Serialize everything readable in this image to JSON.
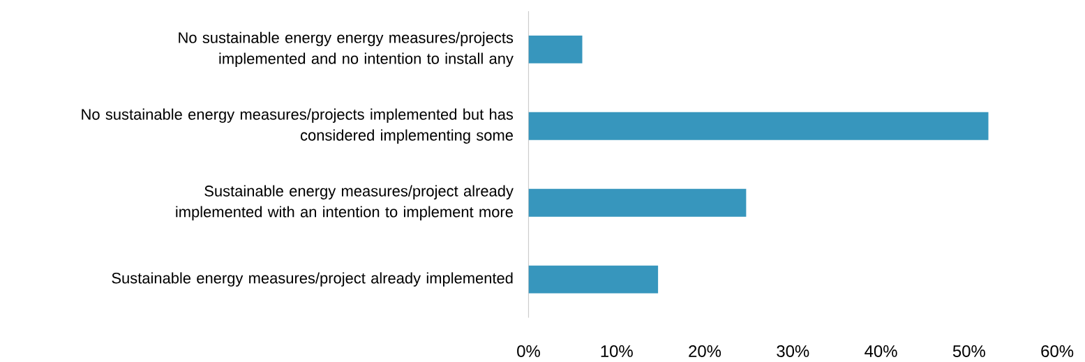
{
  "chart_data": {
    "type": "bar",
    "orientation": "horizontal",
    "categories": [
      "No sustainable energy energy measures/projects implemented and no intention to install any",
      "No sustainable energy measures/projects implemented but has considered implementing some",
      "Sustainable energy measures/project already implemented with an intention to implement more",
      "Sustainable energy measures/project already implemented"
    ],
    "values": [
      6.1,
      52.2,
      24.7,
      14.7
    ],
    "color": "#3796bd",
    "xlim": [
      0,
      60
    ],
    "xticks": [
      {
        "value": 0,
        "label": "0%"
      },
      {
        "value": 10,
        "label": "10%"
      },
      {
        "value": 20,
        "label": "20%"
      },
      {
        "value": 30,
        "label": "30%"
      },
      {
        "value": 40,
        "label": "40%"
      },
      {
        "value": 50,
        "label": "50%"
      },
      {
        "value": 60,
        "label": "60%"
      }
    ],
    "grid": false
  }
}
